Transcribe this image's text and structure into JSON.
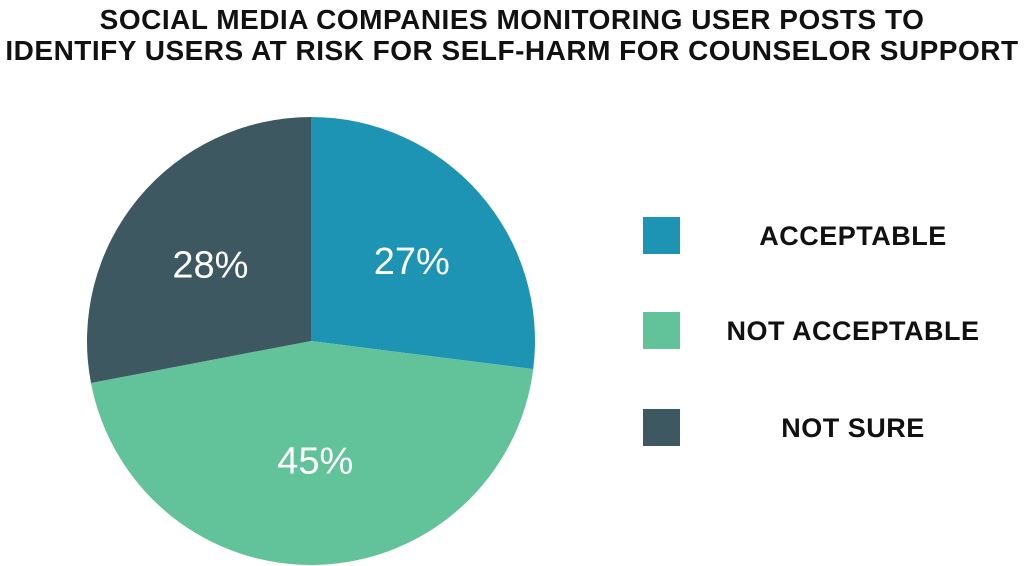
{
  "chart_data": {
    "type": "pie",
    "title": "SOCIAL MEDIA COMPANIES MONITORING USER POSTS TO IDENTIFY USERS AT RISK FOR SELF-HARM FOR COUNSELOR SUPPORT",
    "title_lines": [
      "SOCIAL MEDIA COMPANIES MONITORING USER POSTS TO",
      "IDENTIFY USERS AT RISK FOR SELF-HARM FOR COUNSELOR SUPPORT"
    ],
    "categories": [
      "ACCEPTABLE",
      "NOT ACCEPTABLE",
      "NOT SURE"
    ],
    "values": [
      27,
      45,
      28
    ],
    "labels": [
      "27%",
      "45%",
      "28%"
    ],
    "colors": [
      "#1E94B4",
      "#62C29A",
      "#3D5860"
    ],
    "legend_placement": "right"
  }
}
